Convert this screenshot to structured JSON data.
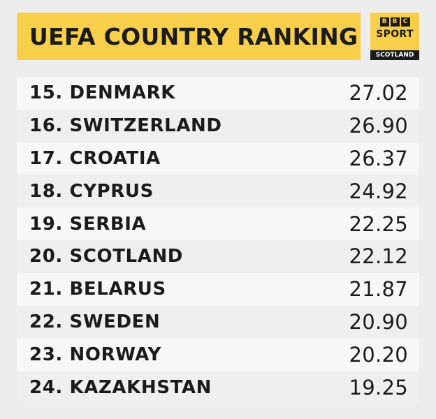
{
  "title": "UEFA COUNTRY RANKING",
  "logo": {
    "bbc_letters": [
      "B",
      "B",
      "C"
    ],
    "sport": "SPORT",
    "region": "SCOTLAND"
  },
  "rankings": [
    {
      "label": "15. DENMARK",
      "points": "27.02"
    },
    {
      "label": "16. SWITZERLAND",
      "points": "26.90"
    },
    {
      "label": "17. CROATIA",
      "points": "26.37"
    },
    {
      "label": "18. CYPRUS",
      "points": "24.92"
    },
    {
      "label": "19. SERBIA",
      "points": "22.25"
    },
    {
      "label": "20. SCOTLAND",
      "points": "22.12"
    },
    {
      "label": "21. BELARUS",
      "points": "21.87"
    },
    {
      "label": "22. SWEDEN",
      "points": "20.90"
    },
    {
      "label": "23. NORWAY",
      "points": "20.20"
    },
    {
      "label": "24. KAZAKHSTAN",
      "points": "19.25"
    }
  ]
}
